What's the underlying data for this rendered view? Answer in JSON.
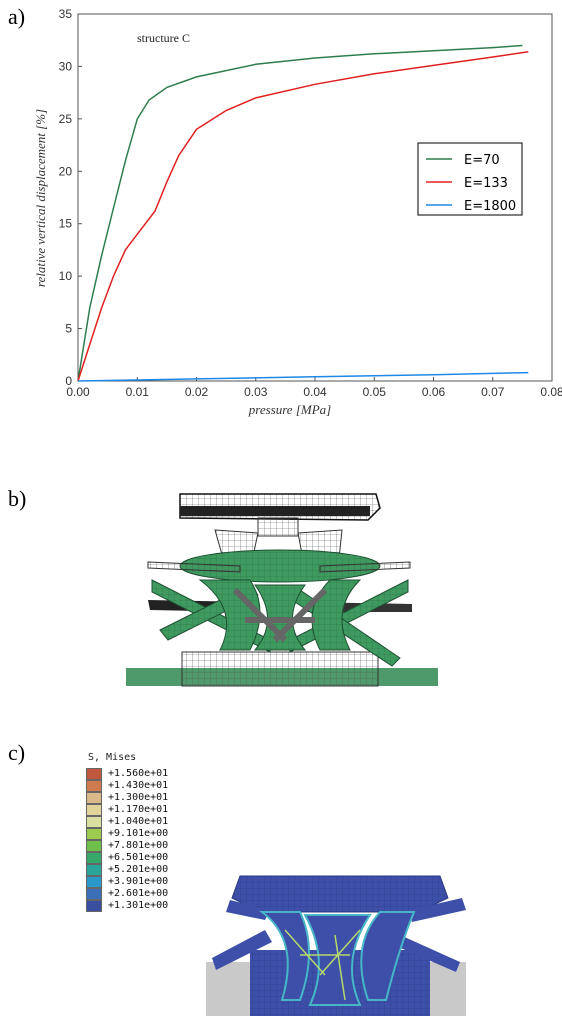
{
  "panels": {
    "a": "a)",
    "b": "b)",
    "c": "c)"
  },
  "chart_data": {
    "type": "line",
    "title": "structure C",
    "xlabel": "pressure [MPa]",
    "ylabel": "relative vertical displacement [%]",
    "xlim": [
      0,
      0.08
    ],
    "ylim": [
      0,
      35
    ],
    "x_ticks": [
      "0.00",
      "0.01",
      "0.02",
      "0.03",
      "0.04",
      "0.05",
      "0.06",
      "0.07",
      "0.08"
    ],
    "y_ticks": [
      "0",
      "5",
      "10",
      "15",
      "20",
      "25",
      "30",
      "35"
    ],
    "grid": false,
    "legend_position": "right",
    "series": [
      {
        "name": "E=70",
        "color": "#2e7d4f",
        "points": [
          [
            0,
            0
          ],
          [
            0.002,
            7
          ],
          [
            0.004,
            12
          ],
          [
            0.006,
            16.5
          ],
          [
            0.008,
            21
          ],
          [
            0.01,
            25
          ],
          [
            0.012,
            26.8
          ],
          [
            0.015,
            28
          ],
          [
            0.02,
            29
          ],
          [
            0.03,
            30.2
          ],
          [
            0.04,
            30.8
          ],
          [
            0.05,
            31.2
          ],
          [
            0.06,
            31.5
          ],
          [
            0.07,
            31.8
          ],
          [
            0.075,
            32
          ]
        ]
      },
      {
        "name": "E=133",
        "color": "#e02020",
        "points": [
          [
            0,
            0
          ],
          [
            0.002,
            3.5
          ],
          [
            0.004,
            7
          ],
          [
            0.006,
            10
          ],
          [
            0.008,
            12.5
          ],
          [
            0.01,
            14
          ],
          [
            0.013,
            16.2
          ],
          [
            0.015,
            19
          ],
          [
            0.017,
            21.5
          ],
          [
            0.02,
            24
          ],
          [
            0.025,
            25.8
          ],
          [
            0.03,
            27
          ],
          [
            0.04,
            28.3
          ],
          [
            0.05,
            29.3
          ],
          [
            0.06,
            30.1
          ],
          [
            0.07,
            30.9
          ],
          [
            0.076,
            31.4
          ]
        ]
      },
      {
        "name": "E=1800",
        "color": "#1e88e5",
        "points": [
          [
            0,
            0
          ],
          [
            0.01,
            0.1
          ],
          [
            0.02,
            0.2
          ],
          [
            0.04,
            0.4
          ],
          [
            0.06,
            0.6
          ],
          [
            0.076,
            0.8
          ]
        ]
      }
    ]
  },
  "mises": {
    "title": "S, Mises",
    "levels": [
      {
        "label": "+1.560e+01",
        "color": "#c0583f"
      },
      {
        "label": "+1.430e+01",
        "color": "#cf7a4f"
      },
      {
        "label": "+1.300e+01",
        "color": "#d9b98a"
      },
      {
        "label": "+1.170e+01",
        "color": "#e2d39a"
      },
      {
        "label": "+1.040e+01",
        "color": "#d9dfa0"
      },
      {
        "label": "+9.101e+00",
        "color": "#9ccb4f"
      },
      {
        "label": "+7.801e+00",
        "color": "#6fbe4a"
      },
      {
        "label": "+6.501e+00",
        "color": "#38a86a"
      },
      {
        "label": "+5.201e+00",
        "color": "#2aa59a"
      },
      {
        "label": "+3.901e+00",
        "color": "#2a98c8"
      },
      {
        "label": "+2.601e+00",
        "color": "#3c6fb8"
      },
      {
        "label": "+1.301e+00",
        "color": "#3a4fa0"
      }
    ]
  }
}
